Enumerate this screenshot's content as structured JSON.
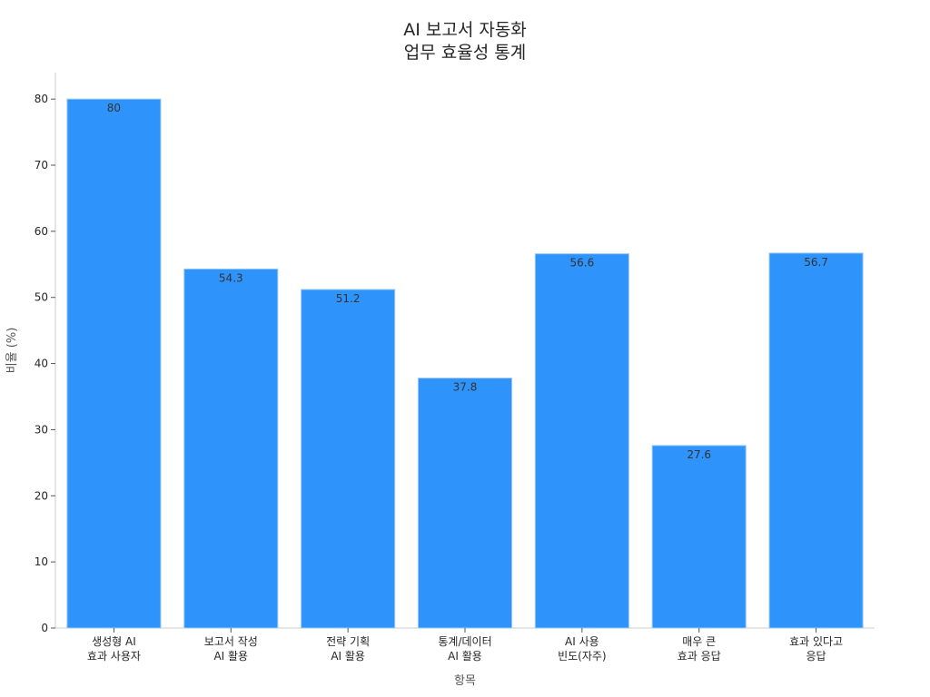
{
  "chart_data": {
    "type": "bar",
    "title_lines": [
      "AI 보고서 자동화",
      "업무 효율성 통계"
    ],
    "xlabel": "항목",
    "ylabel": "비율 (%)",
    "categories": [
      [
        "생성형 AI",
        "효과 사용자"
      ],
      [
        "보고서 작성",
        "AI 활용"
      ],
      [
        "전략 기획",
        "AI 활용"
      ],
      [
        "통계/데이터",
        "AI 활용"
      ],
      [
        "AI 사용",
        "빈도(자주)"
      ],
      [
        "매우 큰",
        "효과 응답"
      ],
      [
        "효과 있다고",
        "응답"
      ]
    ],
    "values": [
      80,
      54.3,
      51.2,
      37.8,
      56.6,
      27.6,
      56.7
    ],
    "value_labels": [
      "80",
      "54.3",
      "51.2",
      "37.8",
      "56.6",
      "27.6",
      "56.7"
    ],
    "ylim": [
      0,
      84
    ],
    "yticks": [
      0,
      10,
      20,
      30,
      40,
      50,
      60,
      70,
      80
    ],
    "grid": false,
    "colors": {
      "bar": "#2E93FA",
      "bar_edge": "#9CC9F5",
      "axis": "#cccccc",
      "text": "#262626"
    }
  }
}
